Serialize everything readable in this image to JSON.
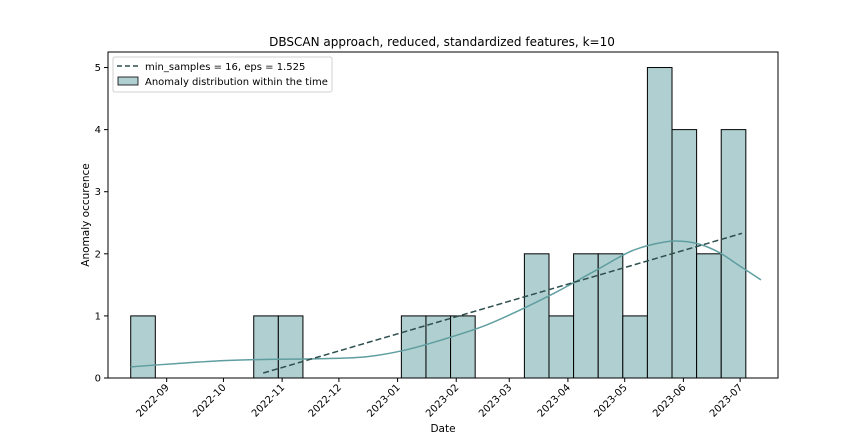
{
  "chart_data": {
    "type": "bar",
    "title": "DBSCAN approach, reduced, standardized features, k=10",
    "xlabel": "Date",
    "ylabel": "Anomaly occurence",
    "x_ticks": [
      "2022-09",
      "2022-10",
      "2022-11",
      "2022-12",
      "2023-01",
      "2023-02",
      "2023-03",
      "2023-04",
      "2023-05",
      "2023-06",
      "2023-07"
    ],
    "y_ticks": [
      0,
      1,
      2,
      3,
      4,
      5
    ],
    "ylim": [
      0,
      5.25
    ],
    "xlim": [
      "2022-08-01",
      "2023-07-21"
    ],
    "grid": false,
    "legend_position": "top-left",
    "bins": [
      {
        "start": "2022-08-13",
        "end": "2022-08-26",
        "value": 1
      },
      {
        "start": "2022-08-26",
        "end": "2022-09-08",
        "value": 0
      },
      {
        "start": "2022-09-08",
        "end": "2022-09-21",
        "value": 0
      },
      {
        "start": "2022-09-21",
        "end": "2022-10-04",
        "value": 0
      },
      {
        "start": "2022-10-04",
        "end": "2022-10-17",
        "value": 0
      },
      {
        "start": "2022-10-17",
        "end": "2022-10-30",
        "value": 1
      },
      {
        "start": "2022-10-30",
        "end": "2022-11-12",
        "value": 1
      },
      {
        "start": "2022-11-12",
        "end": "2022-11-25",
        "value": 0
      },
      {
        "start": "2022-11-25",
        "end": "2022-12-08",
        "value": 0
      },
      {
        "start": "2022-12-08",
        "end": "2022-12-21",
        "value": 0
      },
      {
        "start": "2022-12-21",
        "end": "2023-01-03",
        "value": 0
      },
      {
        "start": "2023-01-03",
        "end": "2023-01-16",
        "value": 1
      },
      {
        "start": "2023-01-16",
        "end": "2023-01-29",
        "value": 1
      },
      {
        "start": "2023-01-29",
        "end": "2023-02-11",
        "value": 1
      },
      {
        "start": "2023-02-11",
        "end": "2023-02-24",
        "value": 0
      },
      {
        "start": "2023-02-24",
        "end": "2023-03-09",
        "value": 0
      },
      {
        "start": "2023-03-09",
        "end": "2023-03-22",
        "value": 2
      },
      {
        "start": "2023-03-22",
        "end": "2023-04-04",
        "value": 1
      },
      {
        "start": "2023-04-04",
        "end": "2023-04-17",
        "value": 2
      },
      {
        "start": "2023-04-17",
        "end": "2023-04-30",
        "value": 2
      },
      {
        "start": "2023-04-30",
        "end": "2023-05-13",
        "value": 1
      },
      {
        "start": "2023-05-13",
        "end": "2023-05-26",
        "value": 5
      },
      {
        "start": "2023-05-26",
        "end": "2023-06-08",
        "value": 4
      },
      {
        "start": "2023-06-08",
        "end": "2023-06-21",
        "value": 2
      },
      {
        "start": "2023-06-21",
        "end": "2023-07-04",
        "value": 4
      }
    ],
    "series": [
      {
        "name": "min_samples = 16, eps = 1.525",
        "type": "line",
        "style": "dashed",
        "color": "#2f4f4f",
        "x": [
          "2022-10-22",
          "2023-07-02"
        ],
        "values": [
          0.08,
          2.33
        ]
      },
      {
        "name": "Anomaly distribution within the time",
        "type": "histogram",
        "color": "#b0cfd0",
        "edge_color": "#000000"
      },
      {
        "type": "kde",
        "color": "#5f9ea0",
        "x": [
          "2022-08-13",
          "2022-09-05",
          "2022-10-01",
          "2022-10-25",
          "2022-11-20",
          "2022-12-15",
          "2023-01-05",
          "2023-01-25",
          "2023-02-15",
          "2023-03-05",
          "2023-03-25",
          "2023-04-15",
          "2023-05-05",
          "2023-05-22",
          "2023-06-01",
          "2023-06-10",
          "2023-06-20",
          "2023-07-01",
          "2023-07-12"
        ],
        "values": [
          0.18,
          0.23,
          0.28,
          0.3,
          0.31,
          0.34,
          0.45,
          0.62,
          0.83,
          1.07,
          1.37,
          1.72,
          2.05,
          2.19,
          2.2,
          2.15,
          2.02,
          1.8,
          1.58
        ]
      }
    ]
  }
}
